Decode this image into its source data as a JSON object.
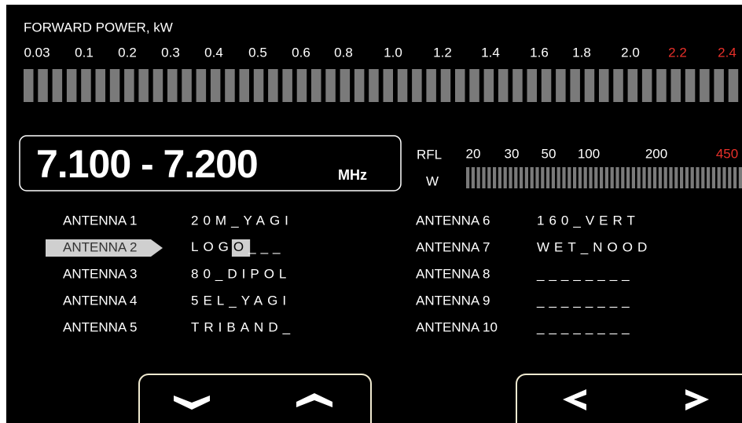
{
  "forward_power": {
    "title": "FORWARD POWER, kW",
    "scale": [
      {
        "text": "0.03",
        "color": "#ffffff"
      },
      {
        "text": "0.1",
        "color": "#ffffff"
      },
      {
        "text": "0.2",
        "color": "#ffffff"
      },
      {
        "text": "0.3",
        "color": "#ffffff"
      },
      {
        "text": "0.4",
        "color": "#ffffff"
      },
      {
        "text": "0.5",
        "color": "#ffffff"
      },
      {
        "text": "0.6",
        "color": "#ffffff"
      },
      {
        "text": "0.8",
        "color": "#ffffff"
      },
      {
        "text": "1.0",
        "color": "#ffffff"
      },
      {
        "text": "1.2",
        "color": "#ffffff"
      },
      {
        "text": "1.4",
        "color": "#ffffff"
      },
      {
        "text": "1.6",
        "color": "#ffffff"
      },
      {
        "text": "1.8",
        "color": "#ffffff"
      },
      {
        "text": "2.0",
        "color": "#ffffff"
      },
      {
        "text": "2.2",
        "color": "#e8302a"
      },
      {
        "text": "2.4",
        "color": "#e8302a"
      }
    ]
  },
  "frequency": {
    "range": "7.100 - 7.200",
    "unit": "MHz"
  },
  "reflected_power": {
    "label": "RFL",
    "unit": "W",
    "scale": [
      {
        "text": "20",
        "color": "#ffffff"
      },
      {
        "text": "30",
        "color": "#ffffff"
      },
      {
        "text": "50",
        "color": "#ffffff"
      },
      {
        "text": "100",
        "color": "#ffffff"
      },
      {
        "text": "200",
        "color": "#ffffff"
      },
      {
        "text": "450",
        "color": "#e8302a"
      }
    ]
  },
  "antennas": [
    {
      "label": "ANTENNA 1",
      "name": "20M_YAGI"
    },
    {
      "label": "ANTENNA 2",
      "name": {
        "before": "LOG",
        "cursor": "O",
        "after": "___"
      },
      "selected": true
    },
    {
      "label": "ANTENNA 3",
      "name": "80_DIPOL"
    },
    {
      "label": "ANTENNA 4",
      "name": "5EL_YAGI"
    },
    {
      "label": "ANTENNA 5",
      "name": "TRIBAND_"
    },
    {
      "label": "ANTENNA 6",
      "name": "160_VERT"
    },
    {
      "label": "ANTENNA 7",
      "name": "WET_NOOD"
    },
    {
      "label": "ANTENNA 8",
      "name": "________"
    },
    {
      "label": "ANTENNA 9",
      "name": "________"
    },
    {
      "label": "ANTENNA 10",
      "name": "________"
    }
  ]
}
